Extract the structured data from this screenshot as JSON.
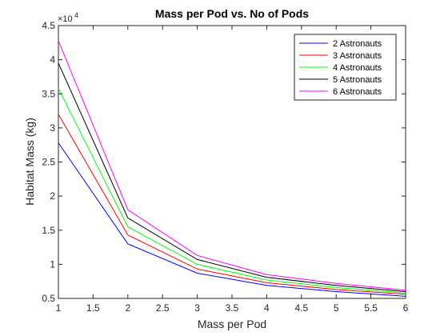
{
  "chart_data": {
    "type": "line",
    "title": "Mass per Pod vs. No of Pods",
    "xlabel": "Mass per Pod",
    "ylabel": "Habitat Mass (kg)",
    "xlim": [
      1,
      6
    ],
    "ylim": [
      0.5,
      4.5
    ],
    "y_multiplier_base": "×10",
    "y_multiplier_exp": "4",
    "x_ticks": [
      1,
      1.5,
      2,
      2.5,
      3,
      3.5,
      4,
      4.5,
      5,
      5.5,
      6
    ],
    "y_ticks": [
      0.5,
      1,
      1.5,
      2,
      2.5,
      3,
      3.5,
      4,
      4.5
    ],
    "legend_position": "top-right",
    "x": [
      1,
      2,
      3,
      4,
      5,
      6
    ],
    "series": [
      {
        "name": "2 Astronauts",
        "color": "#0000ff",
        "values": [
          2.78,
          1.3,
          0.87,
          0.69,
          0.6,
          0.53
        ]
      },
      {
        "name": "3 Astronauts",
        "color": "#ff0000",
        "values": [
          3.2,
          1.43,
          0.93,
          0.73,
          0.63,
          0.56
        ]
      },
      {
        "name": "4 Astronauts",
        "color": "#00ff00",
        "values": [
          3.58,
          1.55,
          1.0,
          0.77,
          0.66,
          0.58
        ]
      },
      {
        "name": "5 Astronauts",
        "color": "#000000",
        "values": [
          3.95,
          1.68,
          1.07,
          0.81,
          0.69,
          0.6
        ]
      },
      {
        "name": "6 Astronauts",
        "color": "#ff00ff",
        "values": [
          4.28,
          1.8,
          1.13,
          0.85,
          0.72,
          0.62
        ]
      }
    ]
  }
}
